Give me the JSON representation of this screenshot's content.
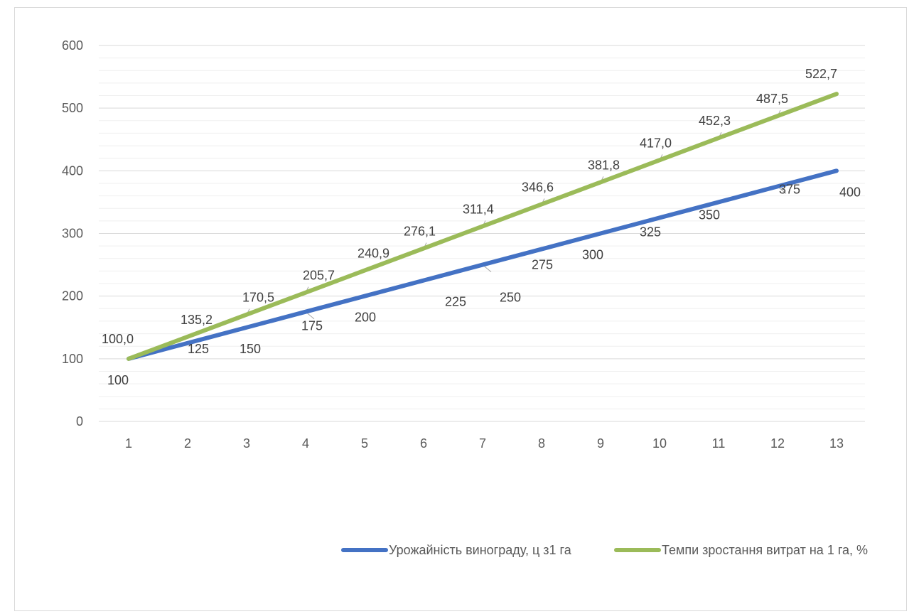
{
  "chart_data": {
    "type": "line",
    "title": "",
    "xlabel": "",
    "ylabel": "",
    "x": [
      1,
      2,
      3,
      4,
      5,
      6,
      7,
      8,
      9,
      10,
      11,
      12,
      13
    ],
    "ylim": [
      0,
      600
    ],
    "y_major_ticks": [
      0,
      100,
      200,
      300,
      400,
      500,
      600
    ],
    "y_minor_step": 20,
    "grid": true,
    "legend_position": "bottom",
    "series": [
      {
        "name": "Урожайність винограду, ц з1 га",
        "color": "#4472c4",
        "values": [
          100,
          125,
          150,
          175,
          200,
          225,
          250,
          275,
          300,
          325,
          350,
          375,
          400
        ],
        "labels": [
          "100",
          "125",
          "150",
          "175",
          "200",
          "225",
          "250",
          "275",
          "300",
          "325",
          "350",
          "375",
          "400"
        ]
      },
      {
        "name": "Темпи зростання витрат на 1 га, %",
        "color": "#9bbb59",
        "values": [
          100.0,
          135.2,
          170.5,
          205.7,
          240.9,
          276.1,
          311.4,
          346.6,
          381.8,
          417.0,
          452.3,
          487.5,
          522.7
        ],
        "labels": [
          "100,0",
          "135,2",
          "170,5",
          "205,7",
          "240,9",
          "276,1",
          "311,4",
          "346,6",
          "381,8",
          "417,0",
          "452,3",
          "487,5",
          "522,7"
        ]
      }
    ]
  }
}
